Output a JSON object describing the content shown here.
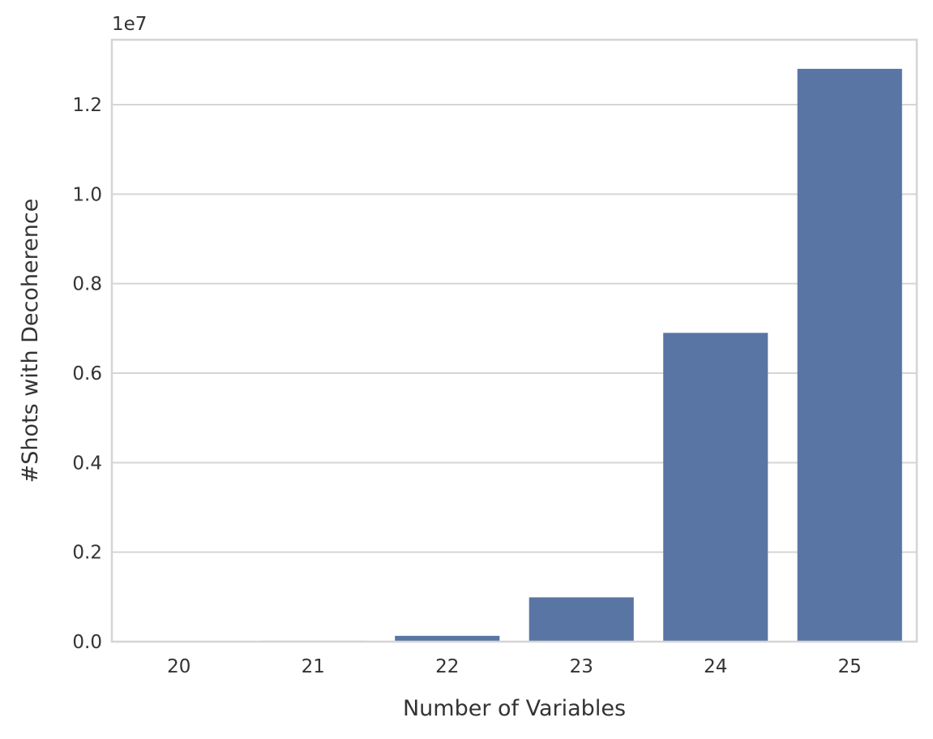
{
  "chart_data": {
    "type": "bar",
    "categories": [
      "20",
      "21",
      "22",
      "23",
      "24",
      "25"
    ],
    "values": [
      10000,
      20000,
      130000,
      990000,
      6900000,
      12800000
    ],
    "xlabel": "Number of Variables",
    "ylabel": "#Shots with Decoherence",
    "offset_label": "1e7",
    "y_ticks": [
      0,
      2000000,
      4000000,
      6000000,
      8000000,
      10000000,
      12000000
    ],
    "y_tick_labels": [
      "0.0",
      "0.2",
      "0.4",
      "0.6",
      "0.8",
      "1.0",
      "1.2"
    ],
    "ylim": [
      0,
      13450000
    ],
    "grid": "horizontal",
    "bar_color": "#5875a4",
    "grid_color": "#d5d5d5"
  }
}
